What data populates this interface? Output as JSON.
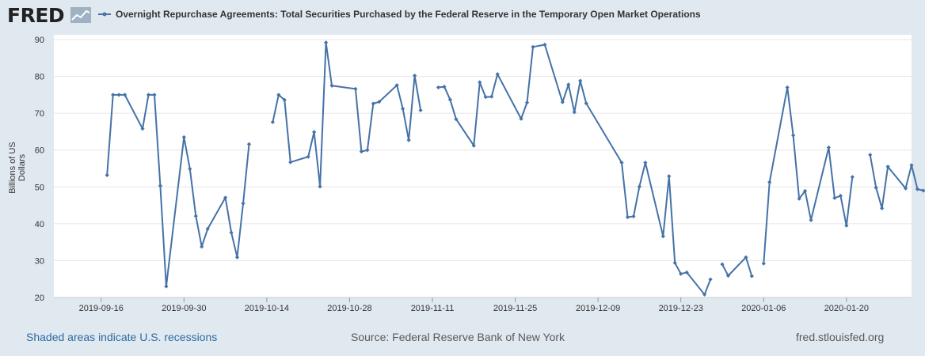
{
  "header": {
    "logo_text": "FRED",
    "legend_label": "Overnight Repurchase Agreements: Total Securities Purchased by the Federal Reserve in the Temporary Open Market Operations"
  },
  "footer": {
    "recessions_link": "Shaded areas indicate U.S. recessions",
    "source": "Source: Federal Reserve Bank of New York",
    "site": "fred.stlouisfed.org"
  },
  "colors": {
    "series": "#4572a7",
    "grid": "#e6e6e6",
    "background": "#e1e9f0",
    "link": "#2b6aa3"
  },
  "chart_data": {
    "type": "line",
    "title": "Overnight Repurchase Agreements: Total Securities Purchased by the Federal Reserve in the Temporary Open Market Operations",
    "xlabel": "",
    "ylabel": "Billions of US Dollars",
    "ylim": [
      20,
      90
    ],
    "yticks": [
      20,
      30,
      40,
      50,
      60,
      70,
      80,
      90
    ],
    "xlim": [
      "2019-09-08",
      "2020-01-31"
    ],
    "xticks": [
      "2019-09-16",
      "2019-09-30",
      "2019-10-14",
      "2019-10-28",
      "2019-11-11",
      "2019-11-25",
      "2019-12-09",
      "2019-12-23",
      "2020-01-06",
      "2020-01-20"
    ],
    "grid": true,
    "legend_position": "top",
    "series": [
      {
        "name": "Overnight Repurchase Agreements: Total Securities Purchased by the Federal Reserve in the Temporary Open Market Operations",
        "points": [
          [
            "2019-09-17",
            53.2
          ],
          [
            "2019-09-18",
            75.0
          ],
          [
            "2019-09-19",
            75.0
          ],
          [
            "2019-09-20",
            75.0
          ],
          [
            "2019-09-23",
            65.8
          ],
          [
            "2019-09-24",
            75.0
          ],
          [
            "2019-09-25",
            75.0
          ],
          [
            "2019-09-26",
            50.3
          ],
          [
            "2019-09-27",
            23.0
          ],
          [
            "2019-09-30",
            63.5
          ],
          [
            "2019-10-01",
            54.9
          ],
          [
            "2019-10-02",
            42.1
          ],
          [
            "2019-10-03",
            33.8
          ],
          [
            "2019-10-04",
            38.6
          ],
          [
            "2019-10-07",
            47.1
          ],
          [
            "2019-10-08",
            37.6
          ],
          [
            "2019-10-09",
            30.9
          ],
          [
            "2019-10-10",
            45.5
          ],
          [
            "2019-10-11",
            61.6
          ]
        ]
      },
      {
        "name": "Overnight Repurchase Agreements: Total Securities Purchased by the Federal Reserve in the Temporary Open Market Operations",
        "points": [
          [
            "2019-10-15",
            67.6
          ],
          [
            "2019-10-16",
            75.0
          ],
          [
            "2019-10-17",
            73.6
          ],
          [
            "2019-10-18",
            56.7
          ],
          [
            "2019-10-21",
            58.2
          ],
          [
            "2019-10-22",
            64.9
          ],
          [
            "2019-10-23",
            50.1
          ],
          [
            "2019-10-24",
            89.2
          ],
          [
            "2019-10-25",
            77.5
          ],
          [
            "2019-10-29",
            76.6
          ],
          [
            "2019-10-30",
            59.6
          ],
          [
            "2019-10-31",
            60.0
          ],
          [
            "2019-11-01",
            72.6
          ],
          [
            "2019-11-02",
            73.1
          ],
          [
            "2019-11-05",
            77.6
          ],
          [
            "2019-11-06",
            71.2
          ],
          [
            "2019-11-07",
            62.7
          ],
          [
            "2019-11-08",
            80.2
          ],
          [
            "2019-11-09",
            70.8
          ]
        ]
      },
      {
        "name": "Overnight Repurchase Agreements: Total Securities Purchased by the Federal Reserve in the Temporary Open Market Operations",
        "points": [
          [
            "2019-11-12",
            77.0
          ],
          [
            "2019-11-13",
            77.2
          ],
          [
            "2019-11-14",
            73.7
          ],
          [
            "2019-11-15",
            68.4
          ],
          [
            "2019-11-18",
            61.2
          ],
          [
            "2019-11-19",
            78.4
          ],
          [
            "2019-11-20",
            74.4
          ],
          [
            "2019-11-21",
            74.5
          ],
          [
            "2019-11-22",
            80.6
          ],
          [
            "2019-11-26",
            68.5
          ],
          [
            "2019-11-27",
            72.9
          ],
          [
            "2019-11-28",
            88.0
          ],
          [
            "2019-11-30",
            88.6
          ],
          [
            "2019-12-03",
            73.0
          ],
          [
            "2019-12-04",
            77.8
          ],
          [
            "2019-12-05",
            70.3
          ],
          [
            "2019-12-06",
            78.8
          ],
          [
            "2019-12-07",
            72.7
          ],
          [
            "2019-12-13",
            56.6
          ],
          [
            "2019-12-14",
            41.8
          ],
          [
            "2019-12-15",
            42.0
          ],
          [
            "2019-12-16",
            50.1
          ],
          [
            "2019-12-17",
            56.6
          ],
          [
            "2019-12-20",
            36.6
          ],
          [
            "2019-12-21",
            52.9
          ],
          [
            "2019-12-22",
            29.4
          ],
          [
            "2019-12-23",
            26.4
          ],
          [
            "2019-12-24",
            26.8
          ],
          [
            "2019-12-27",
            20.8
          ],
          [
            "2019-12-28",
            24.9
          ]
        ]
      },
      {
        "name": "Overnight Repurchase Agreements: Total Securities Purchased by the Federal Reserve in the Temporary Open Market Operations",
        "points": [
          [
            "2019-12-30",
            29.0
          ],
          [
            "2019-12-31",
            25.9
          ],
          [
            "2020-01-03",
            30.9
          ],
          [
            "2020-01-04",
            25.8
          ]
        ]
      },
      {
        "name": "Overnight Repurchase Agreements: Total Securities Purchased by the Federal Reserve in the Temporary Open Market Operations",
        "points": [
          [
            "2020-01-06",
            29.2
          ],
          [
            "2020-01-07",
            51.3
          ],
          [
            "2020-01-10",
            77.0
          ],
          [
            "2020-01-11",
            64.0
          ],
          [
            "2020-01-12",
            46.8
          ],
          [
            "2020-01-13",
            48.9
          ],
          [
            "2020-01-14",
            41.0
          ],
          [
            "2020-01-17",
            60.7
          ],
          [
            "2020-01-18",
            47.0
          ],
          [
            "2020-01-19",
            47.6
          ],
          [
            "2020-01-20",
            39.5
          ],
          [
            "2020-01-21",
            52.7
          ]
        ]
      },
      {
        "name": "Overnight Repurchase Agreements: Total Securities Purchased by the Federal Reserve in the Temporary Open Market Operations",
        "points": [
          [
            "2020-01-24",
            58.7
          ],
          [
            "2020-01-25",
            49.8
          ],
          [
            "2020-01-26",
            44.2
          ],
          [
            "2020-01-27",
            55.5
          ],
          [
            "2020-01-30",
            49.6
          ],
          [
            "2020-01-31",
            55.9
          ],
          [
            "2020-02-01",
            49.4
          ],
          [
            "2020-02-02",
            49.0
          ]
        ]
      }
    ]
  }
}
